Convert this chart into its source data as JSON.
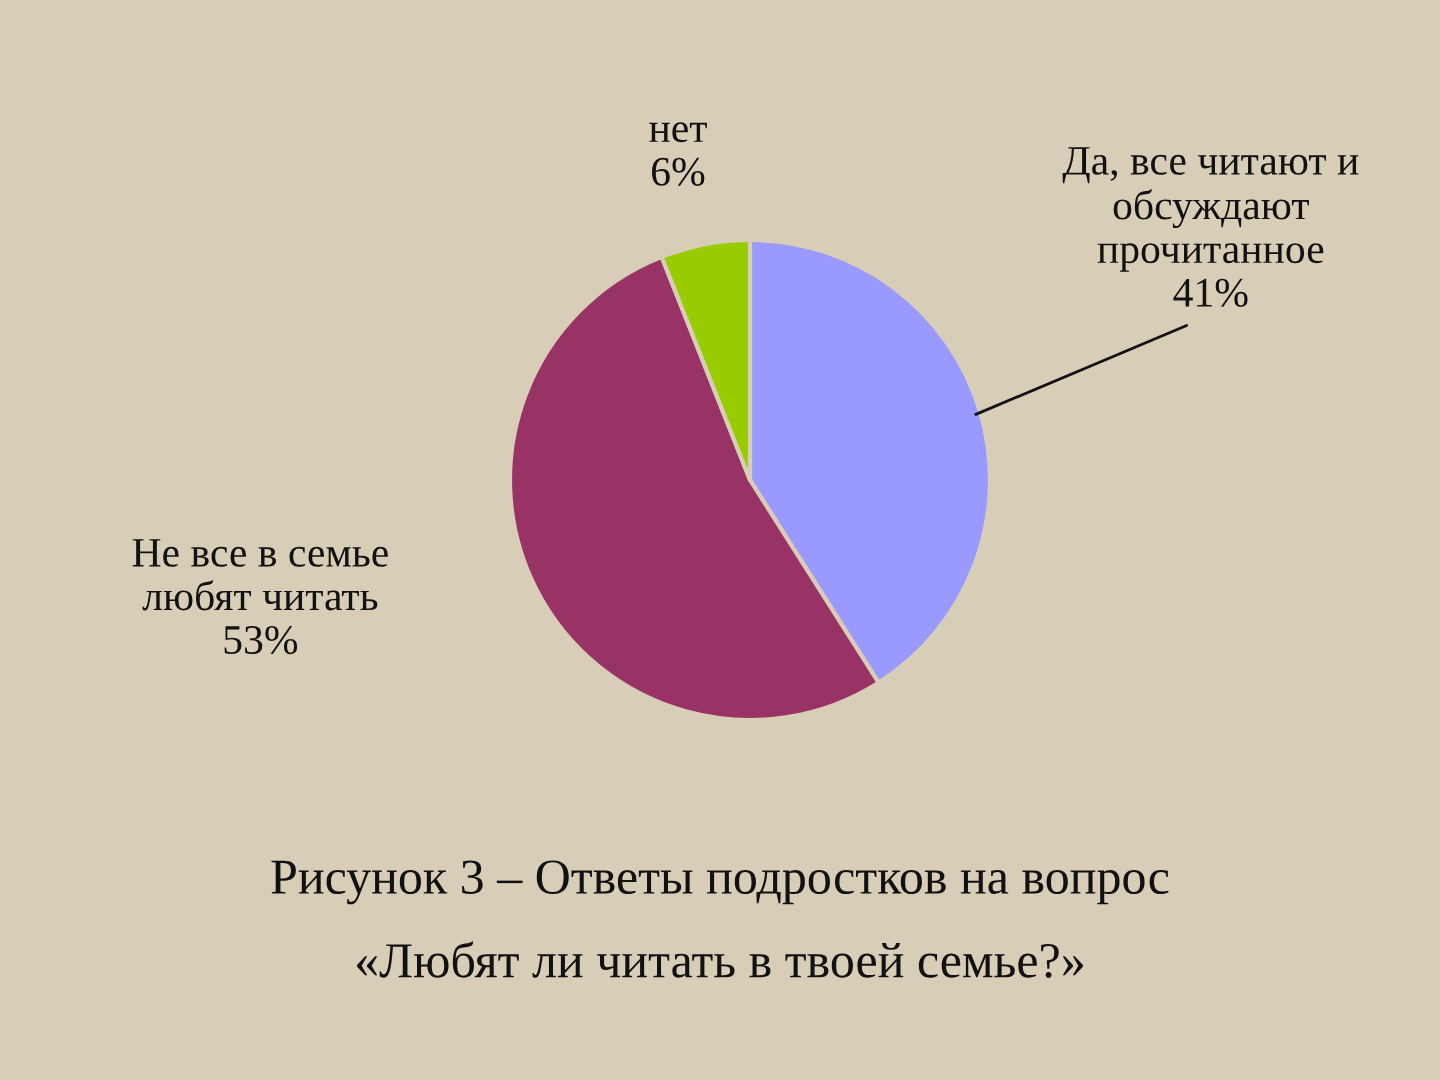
{
  "chart_data": {
    "type": "pie",
    "categories": [
      "Да, все читают и\nобсуждают\nпрочитанное",
      "Не все в семье\nлюбят читать",
      "нет"
    ],
    "values": [
      41,
      53,
      6
    ],
    "colors": [
      "#9999ff",
      "#993366",
      "#99cc00"
    ],
    "value_labels": [
      "41%",
      "53%",
      "6%"
    ],
    "annotations": [
      "Рисунок 3 – Ответы подростков на вопрос\n«Любят ли читать в твоей семье?»"
    ]
  }
}
